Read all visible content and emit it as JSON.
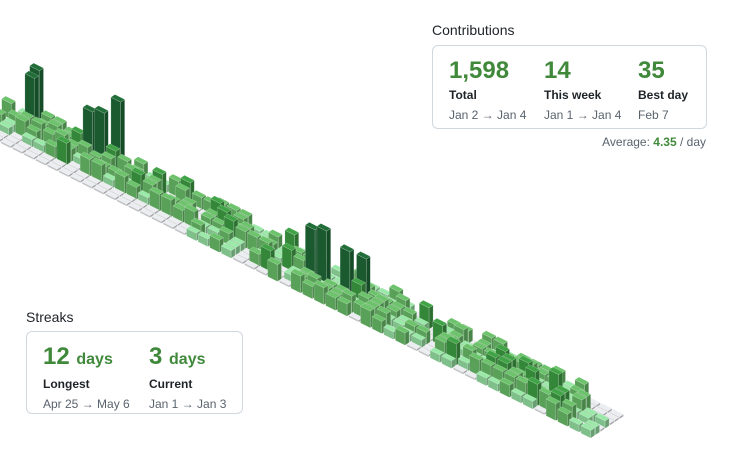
{
  "contributions": {
    "title": "Contributions",
    "total": {
      "value": "1,598",
      "label": "Total",
      "range": "Jan 2 → Jan 4"
    },
    "this_week": {
      "value": "14",
      "label": "This week",
      "range": "Jan 1 → Jan 4"
    },
    "best_day": {
      "value": "35",
      "label": "Best day",
      "range": "Feb 7"
    },
    "average": {
      "prefix": "Average:",
      "value": "4.35",
      "suffix": "/ day"
    }
  },
  "streaks": {
    "title": "Streaks",
    "longest": {
      "value": "12",
      "unit": "days",
      "label": "Longest",
      "range": "Apr 25 → May 6"
    },
    "current": {
      "value": "3",
      "unit": "days",
      "label": "Current",
      "range": "Jan 1 → Jan 3"
    }
  },
  "colors": {
    "empty_top": "#ebedf0",
    "level1": "#9be9a8",
    "level2": "#6cc36b",
    "level3": "#40a346",
    "level4": "#216e39",
    "accent_text": "#40893b"
  }
}
